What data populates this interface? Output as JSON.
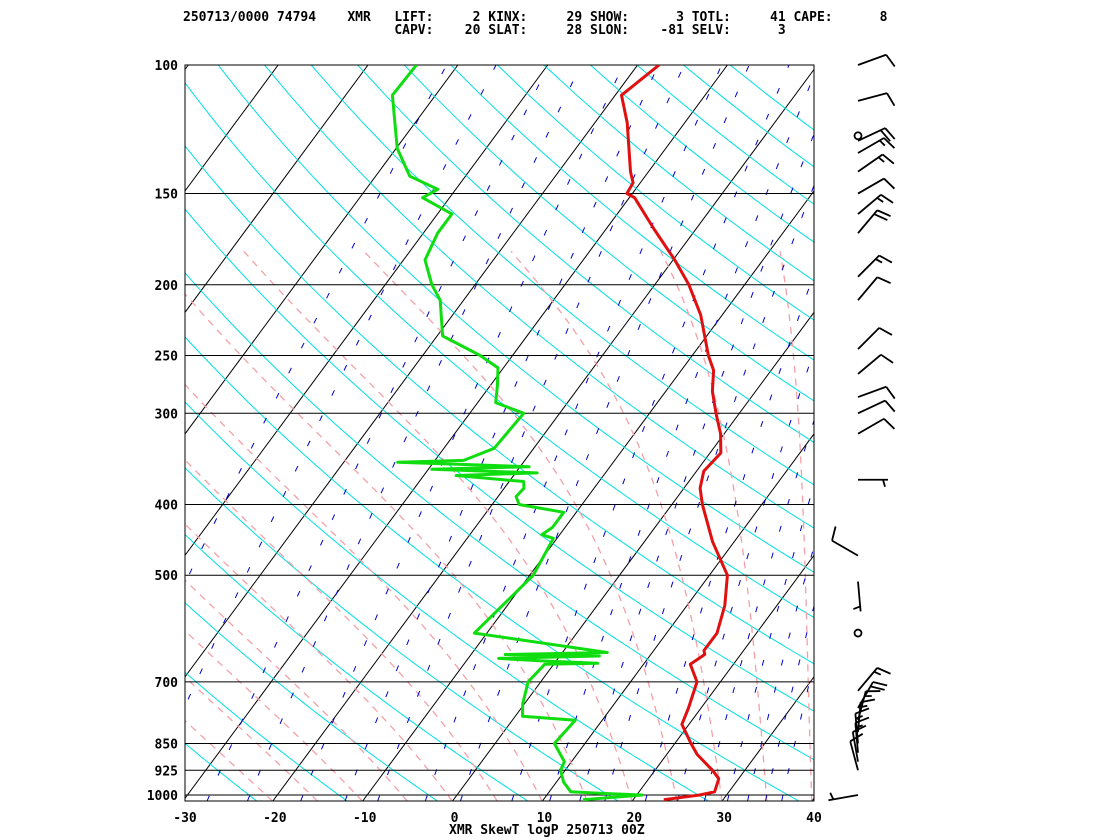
{
  "header": {
    "line1": "250713/0000 74794    XMR   LIFT:     2 KINX:     29 SHOW:      3 TOTL:     41 CAPE:      8",
    "line2": "                           CAPV:    20 SLAT:     28 SLON:    -81 SELV:      3"
  },
  "chart_data": {
    "type": "line",
    "title": "XMR SkewT logP 250713 00Z",
    "x_ticks": [
      -30,
      -20,
      -10,
      0,
      10,
      20,
      30,
      40
    ],
    "x_tick_labels": [
      "-30",
      "-20",
      "-10",
      "0",
      "10",
      "20",
      "30",
      "40"
    ],
    "xlim": [
      -30,
      40
    ],
    "p_ticks": [
      100,
      150,
      200,
      250,
      300,
      400,
      500,
      700,
      850,
      925,
      1000
    ],
    "p_tick_labels": [
      "100",
      "150",
      "200",
      "250",
      "300",
      "400",
      "500",
      "700",
      "850",
      "925",
      "1000"
    ],
    "plim": [
      1015,
      100
    ],
    "y_scale": "log",
    "grid": true,
    "series": [
      {
        "key": "temperature",
        "color": "#e01010",
        "points": [
          [
            1015,
            23.4
          ],
          [
            1000,
            27.0
          ],
          [
            990,
            28.4
          ],
          [
            950,
            27.8
          ],
          [
            925,
            26.4
          ],
          [
            880,
            23.4
          ],
          [
            850,
            21.8
          ],
          [
            800,
            19.2
          ],
          [
            760,
            18.6
          ],
          [
            700,
            17.4
          ],
          [
            662,
            15.2
          ],
          [
            642,
            16.0
          ],
          [
            634,
            15.6
          ],
          [
            600,
            15.6
          ],
          [
            550,
            14.2
          ],
          [
            500,
            12.0
          ],
          [
            450,
            7.6
          ],
          [
            400,
            3.4
          ],
          [
            380,
            1.8
          ],
          [
            360,
            0.8
          ],
          [
            340,
            1.2
          ],
          [
            320,
            -0.4
          ],
          [
            300,
            -2.6
          ],
          [
            280,
            -4.8
          ],
          [
            262,
            -6.4
          ],
          [
            250,
            -8.2
          ],
          [
            220,
            -12.4
          ],
          [
            200,
            -16.2
          ],
          [
            185,
            -19.8
          ],
          [
            168,
            -24.6
          ],
          [
            152,
            -29.4
          ],
          [
            150,
            -30.6
          ],
          [
            145,
            -30.8
          ],
          [
            140,
            -32.0
          ],
          [
            120,
            -36.4
          ],
          [
            110,
            -39.3
          ],
          [
            100,
            -37.6
          ]
        ]
      },
      {
        "key": "dewpoint",
        "color": "#10dd10",
        "points": [
          [
            1015,
            14.4
          ],
          [
            1000,
            20.6
          ],
          [
            995,
            16.0
          ],
          [
            990,
            12.4
          ],
          [
            960,
            10.8
          ],
          [
            925,
            9.5
          ],
          [
            900,
            9.2
          ],
          [
            850,
            6.6
          ],
          [
            790,
            7.0
          ],
          [
            780,
            0.8
          ],
          [
            750,
            -0.2
          ],
          [
            700,
            -1.4
          ],
          [
            662,
            -1.0
          ],
          [
            660,
            4.8
          ],
          [
            655,
            -1.6
          ],
          [
            650,
            -6.6
          ],
          [
            645,
            4.4
          ],
          [
            642,
            -6.2
          ],
          [
            638,
            5.0
          ],
          [
            600,
            -11.4
          ],
          [
            500,
            -9.6
          ],
          [
            445,
            -10.4
          ],
          [
            440,
            -12.0
          ],
          [
            430,
            -11.4
          ],
          [
            410,
            -11.4
          ],
          [
            400,
            -17.0
          ],
          [
            390,
            -18.0
          ],
          [
            380,
            -17.8
          ],
          [
            372,
            -18.4
          ],
          [
            365,
            -26.4
          ],
          [
            362,
            -17.6
          ],
          [
            358,
            -29.6
          ],
          [
            355,
            -19.0
          ],
          [
            350,
            -34.0
          ],
          [
            348,
            -26.8
          ],
          [
            335,
            -24.4
          ],
          [
            300,
            -24.0
          ],
          [
            290,
            -28.0
          ],
          [
            275,
            -29.2
          ],
          [
            260,
            -30.6
          ],
          [
            250,
            -33.6
          ],
          [
            235,
            -39.4
          ],
          [
            210,
            -42.6
          ],
          [
            200,
            -44.8
          ],
          [
            185,
            -47.6
          ],
          [
            170,
            -48.4
          ],
          [
            160,
            -48.4
          ],
          [
            152,
            -53.0
          ],
          [
            148,
            -52.0
          ],
          [
            142,
            -56.2
          ],
          [
            130,
            -59.9
          ],
          [
            110,
            -64.8
          ],
          [
            100,
            -64.6
          ]
        ]
      }
    ],
    "wind_barbs": [
      {
        "pressure": 1000,
        "direction": 260,
        "speed_kt": 5
      },
      {
        "pressure": 925,
        "direction": 345,
        "speed_kt": 10
      },
      {
        "pressure": 900,
        "direction": 350,
        "speed_kt": 10
      },
      {
        "pressure": 875,
        "direction": 355,
        "speed_kt": 15
      },
      {
        "pressure": 850,
        "direction": 355,
        "speed_kt": 15
      },
      {
        "pressure": 820,
        "direction": 5,
        "speed_kt": 15
      },
      {
        "pressure": 790,
        "direction": 15,
        "speed_kt": 15
      },
      {
        "pressure": 760,
        "direction": 30,
        "speed_kt": 20
      },
      {
        "pressure": 720,
        "direction": 40,
        "speed_kt": 15
      },
      {
        "pressure": 600,
        "direction": 0,
        "speed_kt": 0
      },
      {
        "pressure": 510,
        "direction": 175,
        "speed_kt": 5
      },
      {
        "pressure": 470,
        "direction": 300,
        "speed_kt": 10
      },
      {
        "pressure": 370,
        "direction": 90,
        "speed_kt": 5
      },
      {
        "pressure": 320,
        "direction": 60,
        "speed_kt": 10
      },
      {
        "pressure": 300,
        "direction": 65,
        "speed_kt": 10
      },
      {
        "pressure": 285,
        "direction": 70,
        "speed_kt": 10
      },
      {
        "pressure": 265,
        "direction": 50,
        "speed_kt": 10
      },
      {
        "pressure": 245,
        "direction": 45,
        "speed_kt": 10
      },
      {
        "pressure": 210,
        "direction": 40,
        "speed_kt": 10
      },
      {
        "pressure": 195,
        "direction": 45,
        "speed_kt": 15
      },
      {
        "pressure": 170,
        "direction": 40,
        "speed_kt": 20
      },
      {
        "pressure": 160,
        "direction": 50,
        "speed_kt": 15
      },
      {
        "pressure": 150,
        "direction": 60,
        "speed_kt": 10
      },
      {
        "pressure": 140,
        "direction": 55,
        "speed_kt": 15
      },
      {
        "pressure": 132,
        "direction": 60,
        "speed_kt": 15
      },
      {
        "pressure": 127,
        "direction": 65,
        "speed_kt": 20
      },
      {
        "pressure": 125,
        "direction": 0,
        "speed_kt": 0
      },
      {
        "pressure": 112,
        "direction": 75,
        "speed_kt": 10
      },
      {
        "pressure": 100,
        "direction": 70,
        "speed_kt": 10
      }
    ],
    "colors": {
      "isotherm_isobar": "#000000",
      "dry_adiabat": "#00e0e0",
      "moist_adiabat": "#f4a0a8",
      "mixing_ratio": "#0000cc",
      "barb": "#000000"
    }
  }
}
